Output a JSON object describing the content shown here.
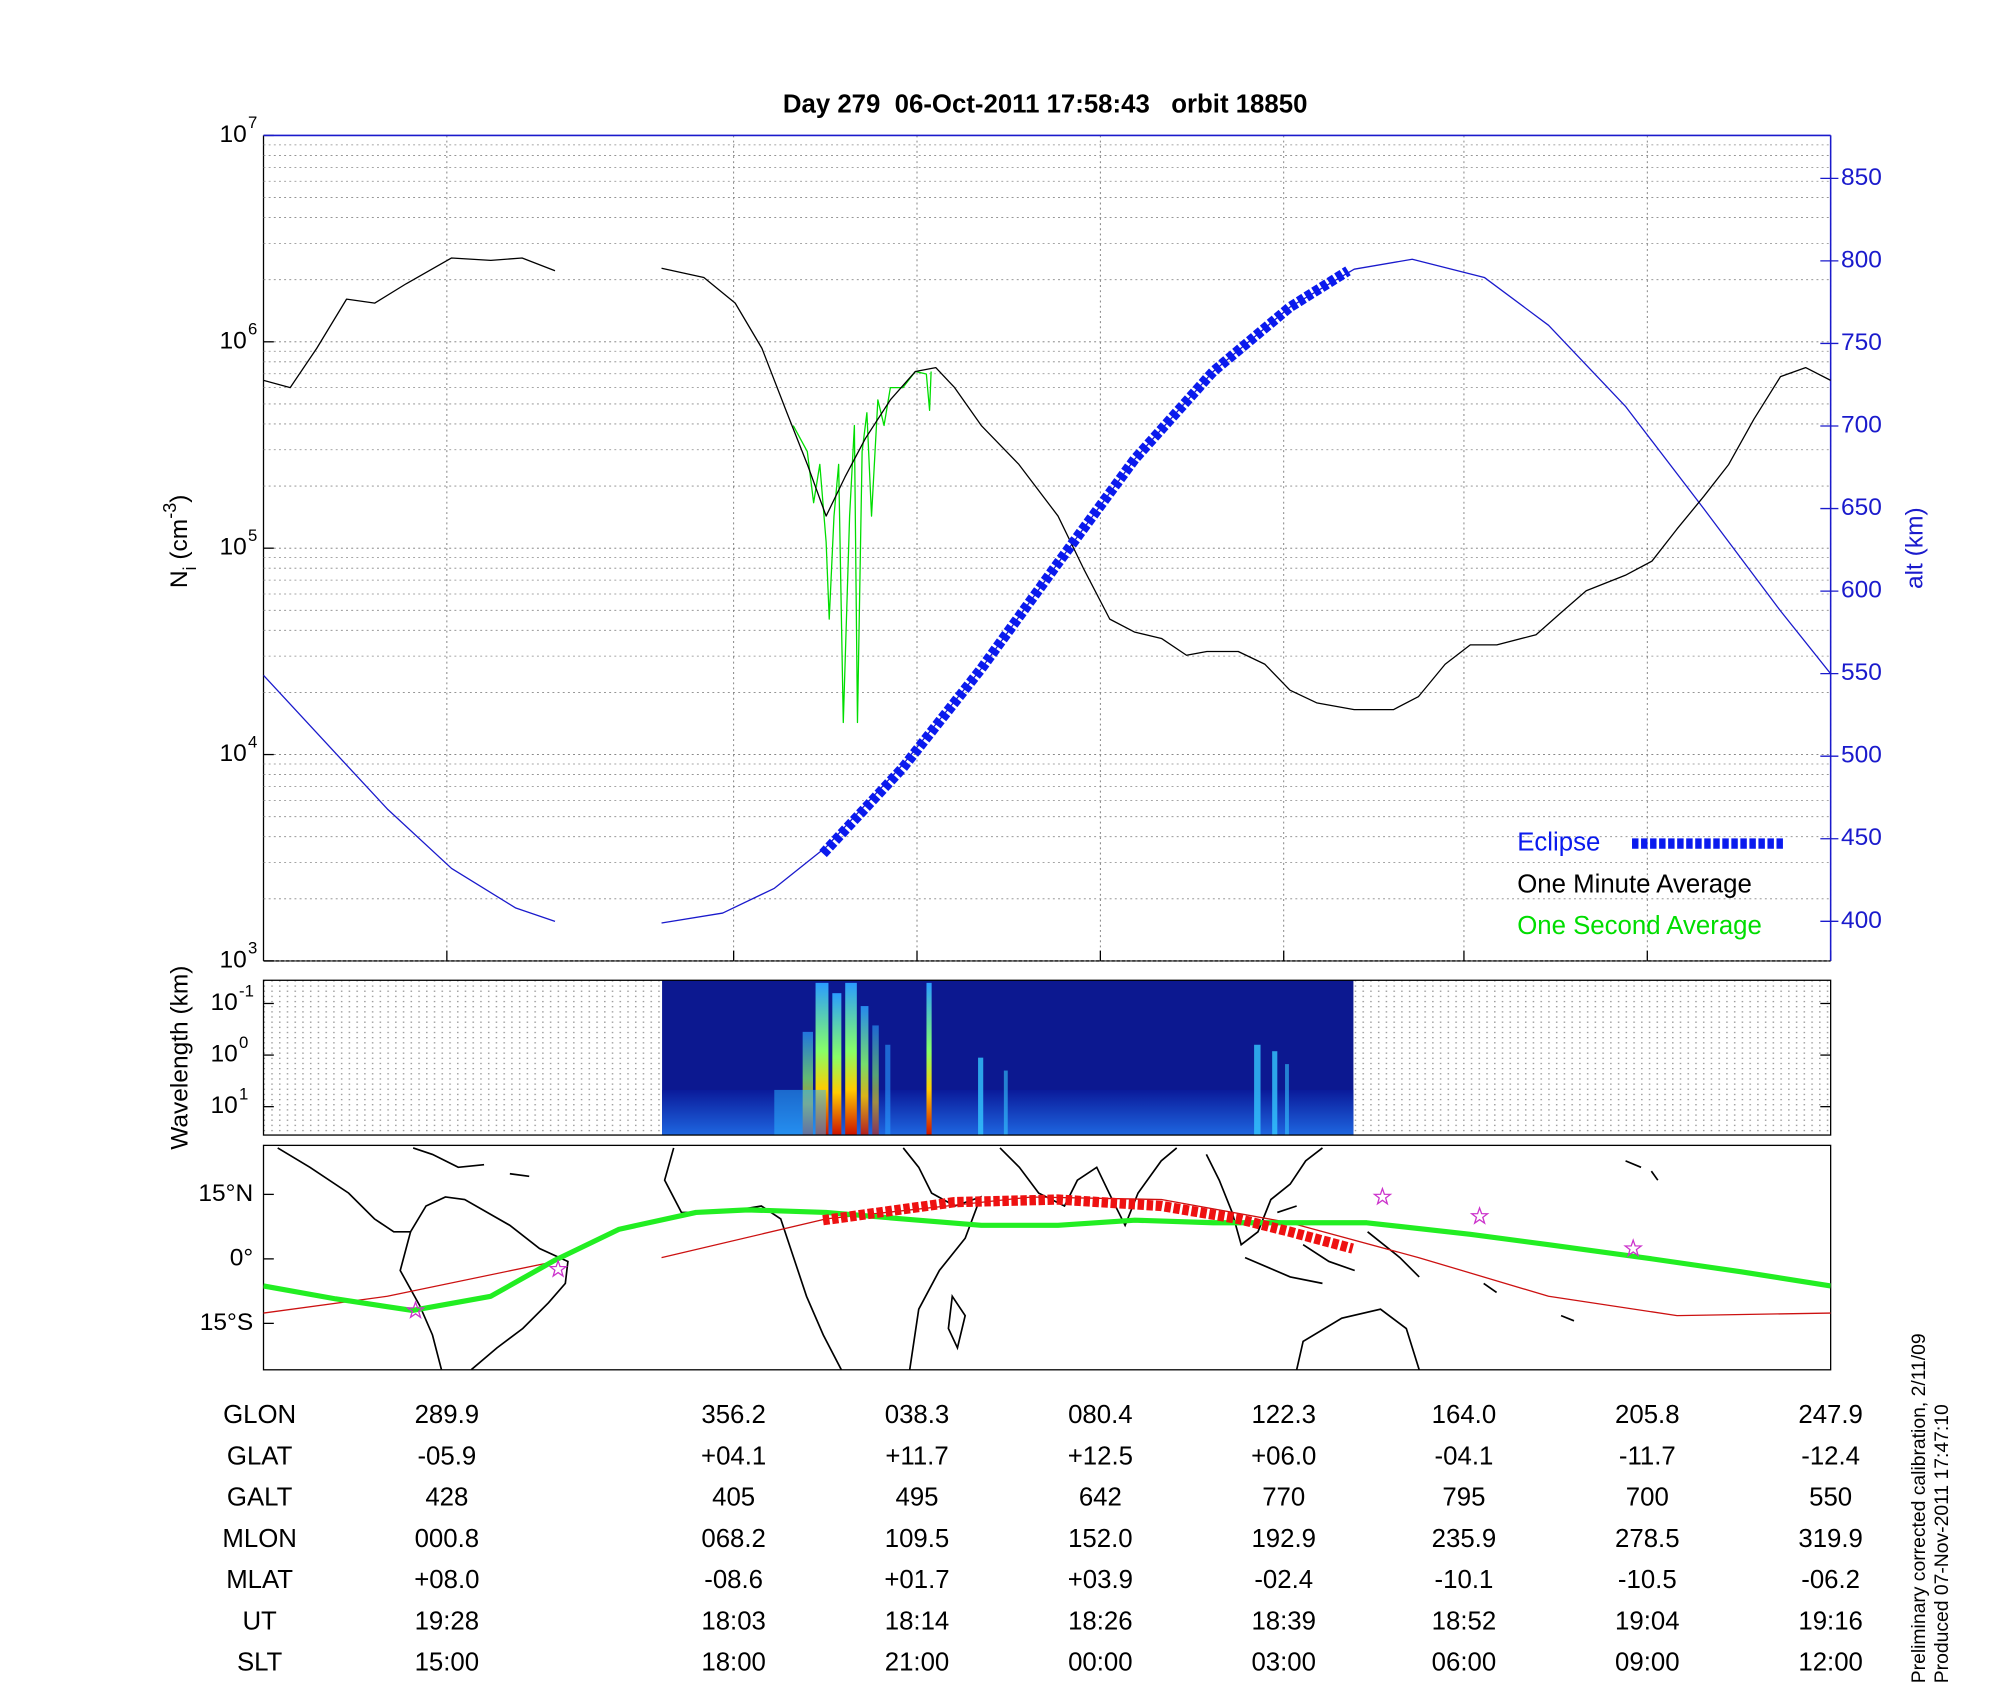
{
  "title": "Day 279  06-Oct-2011 17:58:43   orbit 18850",
  "chart_data": [
    {
      "type": "line",
      "ylabel": [
        "N",
        "i",
        " (cm",
        "-3",
        ")"
      ],
      "y2label": "alt (km)",
      "log_y": true,
      "grid": true,
      "legend": "lower right",
      "xlim": [
        0,
        100
      ],
      "xticks": [
        11.7,
        30.0,
        41.7,
        53.4,
        65.1,
        76.6,
        88.3,
        100
      ],
      "ylim": [
        1000,
        10000000
      ],
      "yticks": [
        {
          "value": 1000,
          "label": "10",
          "exponent": "3"
        },
        {
          "value": 10000,
          "label": "10",
          "exponent": "4"
        },
        {
          "value": 100000,
          "label": "10",
          "exponent": "5"
        },
        {
          "value": 1000000,
          "label": "10",
          "exponent": "6"
        },
        {
          "value": 10000000,
          "label": "10",
          "exponent": "7"
        }
      ],
      "yminorticks": [
        2000,
        3000,
        4000,
        5000,
        6000,
        7000,
        8000,
        9000,
        20000,
        30000,
        40000,
        50000,
        60000,
        70000,
        80000,
        90000,
        200000,
        300000,
        400000,
        500000,
        600000,
        700000,
        800000,
        900000,
        2000000,
        3000000,
        4000000,
        5000000,
        6000000,
        7000000,
        8000000,
        9000000
      ],
      "y2lim": [
        376,
        876
      ],
      "y2ticks": [
        400,
        450,
        500,
        550,
        600,
        650,
        700,
        750,
        800,
        850
      ],
      "y2color": "#1a1acc",
      "series": [
        {
          "name": "Eclipse",
          "color": "#0a1aee",
          "axis": "y2",
          "style": "thick-dashed",
          "x": [
            35.7,
            40.8,
            45.8,
            50.7,
            55.6,
            60.6,
            65.5,
            69.2
          ],
          "values": [
            441,
            493,
            553,
            617,
            680,
            733,
            772,
            794
          ]
        },
        {
          "name": "One Minute Average",
          "color": "#000000",
          "x": [
            0,
            1.7,
            3.4,
            5.3,
            7.1,
            9.1,
            12.0,
            14.5,
            16.5,
            18.6,
            null,
            25.4,
            28.1,
            30.1,
            31.8,
            33.4,
            34.7,
            35.9,
            37.1,
            38.4,
            40.0,
            41.6,
            42.9,
            44.1,
            45.8,
            48.2,
            50.7,
            52.3,
            54.0,
            55.6,
            57.3,
            58.9,
            60.2,
            62.2,
            63.9,
            65.5,
            67.2,
            69.6,
            72.1,
            73.7,
            75.4,
            77.0,
            78.7,
            81.2,
            82.8,
            84.4,
            86.9,
            88.6,
            90.2,
            91.9,
            93.5,
            95.1,
            96.8,
            98.4,
            100
          ],
          "values": [
            650000,
            600000,
            930000,
            1610000,
            1540000,
            1910000,
            2550000,
            2480000,
            2550000,
            2210000,
            null,
            2270000,
            2050000,
            1540000,
            930000,
            453000,
            255000,
            143000,
            221000,
            340000,
            523000,
            718000,
            750000,
            600000,
            393000,
            255000,
            143000,
            80500,
            45300,
            39200,
            36500,
            30300,
            31600,
            31600,
            27400,
            20500,
            17800,
            16500,
            16500,
            19100,
            27400,
            34000,
            34000,
            38100,
            48700,
            62200,
            73900,
            86600,
            124000,
            178000,
            255000,
            422000,
            678000,
            750000,
            650000
          ]
        },
        {
          "name": "One Second Average",
          "color": "#00dd00",
          "x": [
            33.8,
            34.7,
            35.1,
            35.5,
            35.9,
            36.1,
            36.4,
            36.7,
            37.0,
            37.4,
            37.7,
            37.9,
            38.2,
            38.5,
            38.8,
            39.2,
            39.6,
            40.0,
            40.8,
            41.6,
            42.3,
            42.5,
            42.6
          ],
          "values": [
            393000,
            294000,
            166000,
            255000,
            107000,
            45300,
            143000,
            255000,
            14300,
            143000,
            393000,
            14300,
            294000,
            453000,
            143000,
            523000,
            393000,
            600000,
            600000,
            718000,
            698000,
            466000,
            718000
          ]
        },
        {
          "color": "#1a1acc",
          "axis": "y2",
          "x": [
            0,
            3.8,
            7.9,
            12.0,
            16.1,
            18.6,
            null,
            25.4,
            29.3,
            32.6,
            35.9,
            40.8,
            45.8,
            50.7,
            55.6,
            60.6,
            65.5,
            69.6,
            73.3,
            77.9,
            82.0,
            86.9,
            91.9,
            96.8,
            100
          ],
          "values": [
            549,
            510,
            468,
            432,
            408,
            400,
            null,
            399,
            405,
            420,
            445,
            495,
            553,
            617,
            680,
            733,
            772,
            795,
            801,
            790,
            761,
            712,
            650,
            588,
            550
          ]
        }
      ]
    },
    {
      "type": "spectrogram",
      "ylabel": "Wavelength (km)",
      "log_y": true,
      "y_reversed": true,
      "ylim": [
        0.0355,
        35.5
      ],
      "yticks": [
        {
          "value": 0.1,
          "label": "10",
          "exponent": "-1"
        },
        {
          "value": 1,
          "label": "10",
          "exponent": "0"
        },
        {
          "value": 10,
          "label": "10",
          "exponent": "1"
        }
      ]
    },
    {
      "type": "map",
      "xlim": [
        0,
        100
      ],
      "ylim": [
        -25.8,
        26.4
      ],
      "yticks": [
        {
          "value": 15,
          "label": "15°N"
        },
        {
          "value": 0,
          "label": "0°"
        },
        {
          "value": -15,
          "label": "15°S"
        }
      ],
      "series": [
        {
          "color": "#cc1111",
          "x": [
            0,
            7.9,
            18.6,
            null,
            25.4,
            35.9,
            49.0,
            57.3,
            65.5,
            73.7,
            82.0,
            90.2,
            100
          ],
          "values": [
            -12.6,
            -8.7,
            -0.6,
            null,
            0.3,
            9.3,
            14.4,
            13.8,
            8.4,
            0.3,
            -8.7,
            -13.2,
            -12.6
          ]
        },
        {
          "color": "#22ee22",
          "style": "thick",
          "x": [
            0,
            4.6,
            9.5,
            14.5,
            18.6,
            22.7,
            27.6,
            30.9,
            35.9,
            40.8,
            45.8,
            50.7,
            55.6,
            60.6,
            65.5,
            70.4,
            77.0,
            82.0,
            88.6,
            94.3,
            100
          ],
          "values": [
            -6.3,
            -9.3,
            -12.0,
            -8.7,
            -0.3,
            6.9,
            10.8,
            11.4,
            10.8,
            9.3,
            7.8,
            7.8,
            9.0,
            8.4,
            8.4,
            8.4,
            5.7,
            3.3,
            0,
            -3.0,
            -6.3
          ]
        },
        {
          "color": "#ee1111",
          "style": "thick-dashed",
          "x": [
            35.7,
            44.1,
            50.7,
            57.3,
            62.2,
            65.5,
            69.5
          ],
          "values": [
            9.0,
            13.2,
            13.8,
            12.3,
            9.3,
            6.3,
            2.4
          ]
        }
      ],
      "stars": {
        "color": "#cc33cc",
        "x": [
          9.7,
          18.8,
          71.4,
          77.6,
          87.4
        ],
        "y": [
          -12.0,
          -2.4,
          14.4,
          9.9,
          2.4
        ]
      }
    }
  ],
  "table": {
    "rows": [
      {
        "label": "GLON",
        "values": [
          "289.9",
          "356.2",
          "038.3",
          "080.4",
          "122.3",
          "164.0",
          "205.8",
          "247.9"
        ]
      },
      {
        "label": "GLAT",
        "values": [
          "-05.9",
          "+04.1",
          "+11.7",
          "+12.5",
          "+06.0",
          "-04.1",
          "-11.7",
          "-12.4"
        ]
      },
      {
        "label": "GALT",
        "values": [
          "428",
          "405",
          "495",
          "642",
          "770",
          "795",
          "700",
          "550"
        ]
      },
      {
        "label": "MLON",
        "values": [
          "000.8",
          "068.2",
          "109.5",
          "152.0",
          "192.9",
          "235.9",
          "278.5",
          "319.9"
        ]
      },
      {
        "label": "MLAT",
        "values": [
          "+08.0",
          "-08.6",
          "+01.7",
          "+03.9",
          "-02.4",
          "-10.1",
          "-10.5",
          "-06.2"
        ]
      },
      {
        "label": "UT",
        "values": [
          "19:28",
          "18:03",
          "18:14",
          "18:26",
          "18:39",
          "18:52",
          "19:04",
          "19:16"
        ]
      },
      {
        "label": "SLT",
        "values": [
          "15:00",
          "18:00",
          "21:00",
          "00:00",
          "03:00",
          "06:00",
          "09:00",
          "12:00"
        ]
      }
    ]
  },
  "notes": [
    "Preliminary corrected calibration, 2/11/09",
    "Produced 07-Nov-2011 17:47:10"
  ]
}
